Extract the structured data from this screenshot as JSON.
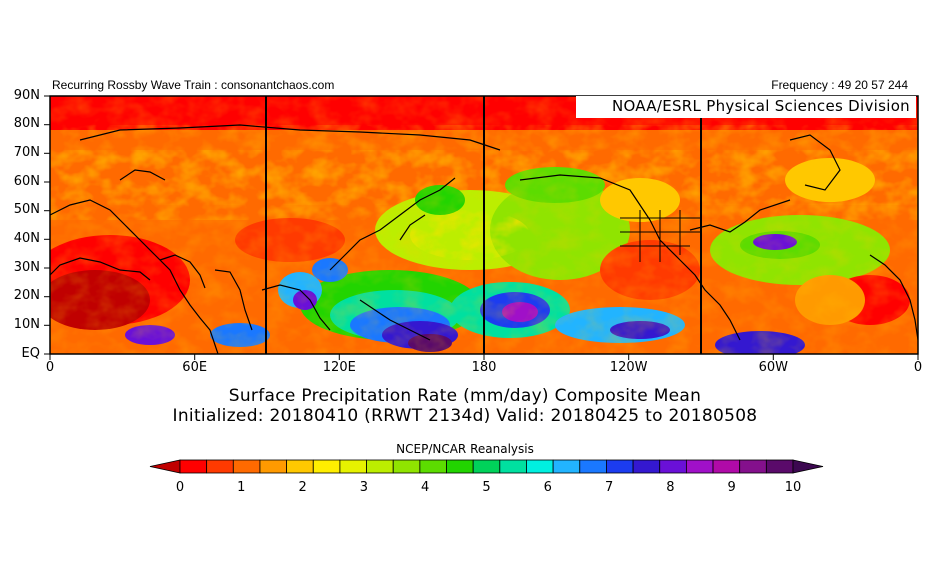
{
  "header": {
    "left_text": "Recurring Rossby Wave Train : consonantchaos.com",
    "right_text": "Frequency : 49 20 57 244",
    "credit": "NOAA/ESRL Physical Sciences Division"
  },
  "map": {
    "projection": "cylindrical lon-lat",
    "lat_range": [
      0,
      90
    ],
    "lon_range": [
      0,
      360
    ],
    "y_axis_labels": [
      "90N",
      "80N",
      "70N",
      "60N",
      "50N",
      "40N",
      "30N",
      "20N",
      "10N",
      "EQ"
    ],
    "x_axis_labels": [
      "0",
      "60E",
      "120E",
      "180",
      "120W",
      "60W",
      "0"
    ],
    "field": "Surface Precipitation Rate",
    "units": "mm/day"
  },
  "titles": {
    "line1": "Surface Precipitation Rate (mm/day) Composite Mean",
    "line2": "Initialized: 20180410 (RRWT 2134d) Valid: 20180425 to 20180508"
  },
  "colorbar": {
    "title": "NCEP/NCAR Reanalysis",
    "tick_labels": [
      "0",
      "1",
      "2",
      "3",
      "4",
      "5",
      "6",
      "7",
      "8",
      "9",
      "10"
    ],
    "colors": [
      "#c00000",
      "#ff0000",
      "#ff3a00",
      "#ff6a00",
      "#ff9a00",
      "#ffc800",
      "#ffee00",
      "#e6f200",
      "#bcee00",
      "#90e400",
      "#5cdc00",
      "#22d400",
      "#00d25a",
      "#00e0a0",
      "#00f0e0",
      "#22b4ff",
      "#1a78ff",
      "#1c3cf0",
      "#3418d0",
      "#6a10d8",
      "#a010c8",
      "#b00aa8",
      "#84108c",
      "#5a0a6a",
      "#3c0850"
    ]
  }
}
